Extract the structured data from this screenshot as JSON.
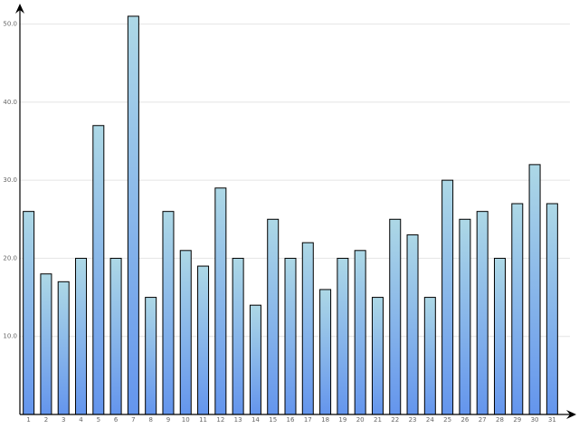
{
  "chart_data": {
    "type": "bar",
    "categories": [
      "1",
      "2",
      "3",
      "4",
      "5",
      "6",
      "7",
      "8",
      "9",
      "10",
      "11",
      "12",
      "13",
      "14",
      "15",
      "16",
      "17",
      "18",
      "19",
      "20",
      "21",
      "22",
      "23",
      "24",
      "25",
      "26",
      "27",
      "28",
      "29",
      "30",
      "31"
    ],
    "values": [
      26,
      18,
      17,
      20,
      37,
      20,
      51,
      15,
      26,
      21,
      19,
      29,
      20,
      14,
      25,
      20,
      22,
      16,
      20,
      21,
      15,
      25,
      23,
      15,
      30,
      25,
      26,
      20,
      27,
      32,
      27
    ],
    "color": "#6495ed",
    "gradient_top_color": "#add8e6",
    "ylim": [
      0,
      52.5
    ],
    "yticks": [
      {
        "value": 10,
        "label": "10.0"
      },
      {
        "value": 20,
        "label": "20.0"
      },
      {
        "value": 30,
        "label": "30.0"
      },
      {
        "value": 40,
        "label": "40.0"
      },
      {
        "value": 50,
        "label": "50.0"
      }
    ],
    "grid": true
  }
}
